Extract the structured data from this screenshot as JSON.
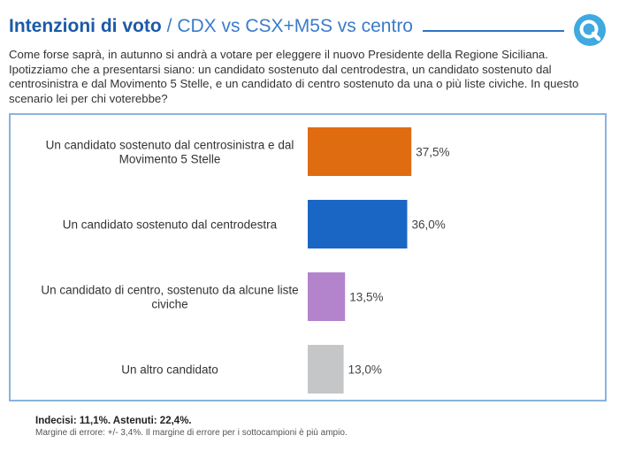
{
  "header": {
    "title": "Intenzioni di voto",
    "subtitle": "/ CDX vs CSX+M5S vs centro",
    "logo_icon": "quorum-q-logo-icon",
    "accent_color": "#1b5aa8",
    "line_color": "#2f73c2",
    "logo_color": "#3fa9e0"
  },
  "question": "Come forse saprà, in autunno si andrà a votare per eleggere il nuovo Presidente della Regione Siciliana. Ipotizziamo che a presentarsi siano: un candidato sostenuto dal centrodestra, un candidato sostenuto dal centrosinistra e dal Movimento 5 Stelle, e un candidato di centro sostenuto da una o più liste civiche. In questo scenario lei per chi voterebbe?",
  "chart_data": {
    "type": "bar",
    "orientation": "horizontal",
    "title": "Intenzioni di voto / CDX vs CSX+M5S vs centro",
    "xlabel": "",
    "ylabel": "",
    "xlim": [
      0,
      40
    ],
    "grid": false,
    "categories": [
      [
        "Un candidato sostenuto dal centrosinistra e dal",
        "Movimento 5 Stelle"
      ],
      [
        "Un candidato sostenuto dal centrodestra"
      ],
      [
        "Un candidato di centro, sostenuto da alcune liste",
        "civiche"
      ],
      [
        "Un altro candidato"
      ]
    ],
    "values": [
      37.5,
      36.0,
      13.5,
      13.0
    ],
    "value_labels": [
      "37,5%",
      "36,0%",
      "13,5%",
      "13,0%"
    ],
    "colors": [
      "#e06c12",
      "#1a66c4",
      "#b383cc",
      "#c4c6c8"
    ]
  },
  "footer": {
    "line1": "Indecisi: 11,1%. Astenuti: 22,4%.",
    "line2": "Margine di errore: +/- 3,4%. Il margine di errore per i sottocampioni è più ampio."
  }
}
